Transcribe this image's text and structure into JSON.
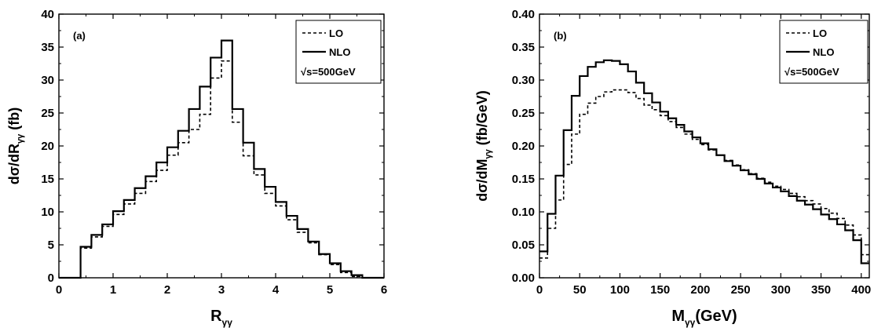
{
  "chart_data": [
    {
      "type": "line",
      "step": true,
      "panel_label": "(a)",
      "xlabel_main": "R",
      "xlabel_sub": "γγ",
      "ylabel_main": "dσ/dR",
      "ylabel_sub": "γγ",
      "ylabel_suffix": " (fb)",
      "xlim": [
        0,
        6
      ],
      "ylim": [
        0,
        40
      ],
      "xticks": [
        "0",
        "1",
        "2",
        "3",
        "4",
        "5",
        "6"
      ],
      "yticks": [
        "0",
        "5",
        "10",
        "15",
        "20",
        "25",
        "30",
        "35",
        "40"
      ],
      "legend": {
        "entries": [
          "LO",
          "NLO"
        ],
        "note": "√s=500GeV",
        "position": "top-right"
      },
      "bin_edges": [
        0.0,
        0.2,
        0.4,
        0.6,
        0.8,
        1.0,
        1.2,
        1.4,
        1.6,
        1.8,
        2.0,
        2.2,
        2.4,
        2.6,
        2.8,
        3.0,
        3.2,
        3.4,
        3.6,
        3.8,
        4.0,
        4.2,
        4.4,
        4.6,
        4.8,
        5.0,
        5.2,
        5.4,
        5.6,
        5.8,
        6.0
      ],
      "series": [
        {
          "name": "LO",
          "style": "dashed",
          "values": [
            0,
            0,
            4.5,
            6.2,
            7.8,
            9.6,
            11.2,
            12.8,
            14.6,
            16.3,
            18.6,
            20.5,
            22.5,
            24.8,
            30.3,
            32.9,
            23.6,
            18.5,
            15.6,
            12.8,
            10.9,
            8.8,
            6.9,
            5.3,
            3.5,
            2.0,
            0.8,
            0.2,
            0,
            0
          ]
        },
        {
          "name": "NLO",
          "style": "solid",
          "values": [
            0,
            0,
            4.7,
            6.5,
            8.1,
            10.1,
            11.8,
            13.6,
            15.4,
            17.5,
            19.8,
            22.3,
            25.6,
            29.0,
            33.4,
            36.0,
            25.6,
            20.5,
            16.5,
            13.8,
            11.5,
            9.4,
            7.4,
            5.5,
            3.6,
            2.2,
            1.0,
            0.4,
            0,
            0
          ]
        }
      ]
    },
    {
      "type": "line",
      "step": true,
      "panel_label": "(b)",
      "xlabel_main": "M",
      "xlabel_sub": "γγ",
      "xlabel_suffix": "(GeV)",
      "ylabel_main": "dσ/dM",
      "ylabel_sub": "γγ",
      "ylabel_suffix": " (fb/GeV)",
      "xlim": [
        0,
        410
      ],
      "ylim": [
        0,
        0.4
      ],
      "xticks": [
        "0",
        "50",
        "100",
        "150",
        "200",
        "250",
        "300",
        "350",
        "400"
      ],
      "yticks": [
        "0.00",
        "0.05",
        "0.10",
        "0.15",
        "0.20",
        "0.25",
        "0.30",
        "0.35",
        "0.40"
      ],
      "legend": {
        "entries": [
          "LO",
          "NLO"
        ],
        "note": "√s=500GeV",
        "position": "top-right"
      },
      "bin_edges": [
        0,
        10,
        20,
        30,
        40,
        50,
        60,
        70,
        80,
        90,
        100,
        110,
        120,
        130,
        140,
        150,
        160,
        170,
        180,
        190,
        200,
        210,
        220,
        230,
        240,
        250,
        260,
        270,
        280,
        290,
        300,
        310,
        320,
        330,
        340,
        350,
        360,
        370,
        380,
        390,
        400,
        410
      ],
      "series": [
        {
          "name": "LO",
          "style": "dashed",
          "values": [
            0.03,
            0.075,
            0.118,
            0.172,
            0.218,
            0.248,
            0.265,
            0.275,
            0.282,
            0.285,
            0.285,
            0.281,
            0.272,
            0.262,
            0.255,
            0.246,
            0.237,
            0.228,
            0.218,
            0.21,
            0.202,
            0.194,
            0.186,
            0.178,
            0.171,
            0.164,
            0.158,
            0.151,
            0.145,
            0.139,
            0.134,
            0.128,
            0.123,
            0.117,
            0.112,
            0.105,
            0.098,
            0.09,
            0.08,
            0.065,
            0.035
          ]
        },
        {
          "name": "NLO",
          "style": "solid",
          "values": [
            0.04,
            0.097,
            0.155,
            0.224,
            0.276,
            0.306,
            0.32,
            0.327,
            0.33,
            0.329,
            0.324,
            0.313,
            0.296,
            0.28,
            0.266,
            0.252,
            0.242,
            0.232,
            0.222,
            0.213,
            0.204,
            0.195,
            0.186,
            0.177,
            0.17,
            0.163,
            0.157,
            0.15,
            0.143,
            0.137,
            0.131,
            0.124,
            0.117,
            0.111,
            0.104,
            0.096,
            0.089,
            0.081,
            0.072,
            0.057,
            0.022
          ]
        }
      ]
    }
  ]
}
